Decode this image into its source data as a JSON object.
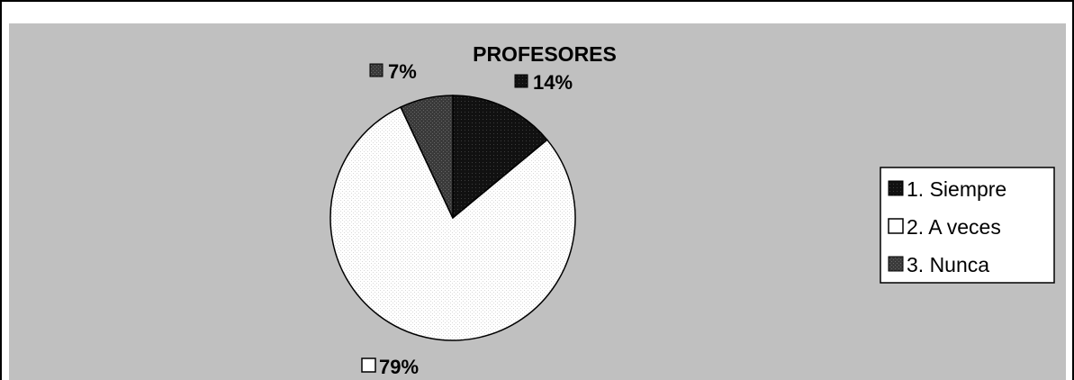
{
  "chart_data": {
    "type": "pie",
    "title": "PROFESORES",
    "categories": [
      "1. Siempre",
      "2. A veces",
      "3. Nunca"
    ],
    "values": [
      14,
      79,
      7
    ],
    "data_labels": [
      "14%",
      "79%",
      "7%"
    ],
    "legend": {
      "placement": "right",
      "entries": [
        "1. Siempre",
        "2. A veces",
        "3. Nunca"
      ]
    },
    "colors": {
      "plot_background": "#c0c0c0",
      "frame": "#000000",
      "series": [
        "#111111",
        "#ffffff",
        "#3a3a3a"
      ]
    }
  }
}
